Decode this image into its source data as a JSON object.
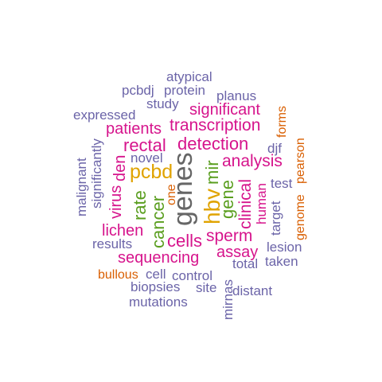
{
  "colors": {
    "slate": "#6b64a8",
    "magenta": "#d6148c",
    "green": "#5a9e1f",
    "gold": "#e0a300",
    "orange": "#d95f02",
    "gray": "#666666"
  },
  "words": {
    "atypical": "atypical",
    "pcbdj": "pcbdj",
    "protein": "protein",
    "planus": "planus",
    "study": "study",
    "significant": "significant",
    "expressed": "expressed",
    "forms": "forms",
    "patients": "patients",
    "transcription": "transcription",
    "significantly": "significantly",
    "rectal": "rectal",
    "detection": "detection",
    "djf": "djf",
    "novel": "novel",
    "pearson": "pearson",
    "den": "den",
    "analysis": "analysis",
    "pcbd": "pcbd",
    "genes": "genes",
    "mir": "mir",
    "malignant": "malignant",
    "one": "one",
    "test": "test",
    "virus": "virus",
    "rate": "rate",
    "cancer": "cancer",
    "hbv": "hbv",
    "gene": "gene",
    "clinical": "clinical",
    "human": "human",
    "genome": "genome",
    "target": "target",
    "lichen": "lichen",
    "sperm": "sperm",
    "results": "results",
    "cells": "cells",
    "lesion": "lesion",
    "assay": "assay",
    "total": "total",
    "sequencing": "sequencing",
    "taken": "taken",
    "bullous": "bullous",
    "cell": "cell",
    "control": "control",
    "mirnas": "mirnas",
    "biopsies": "biopsies",
    "site": "site",
    "distant": "distant",
    "mutations": "mutations"
  }
}
